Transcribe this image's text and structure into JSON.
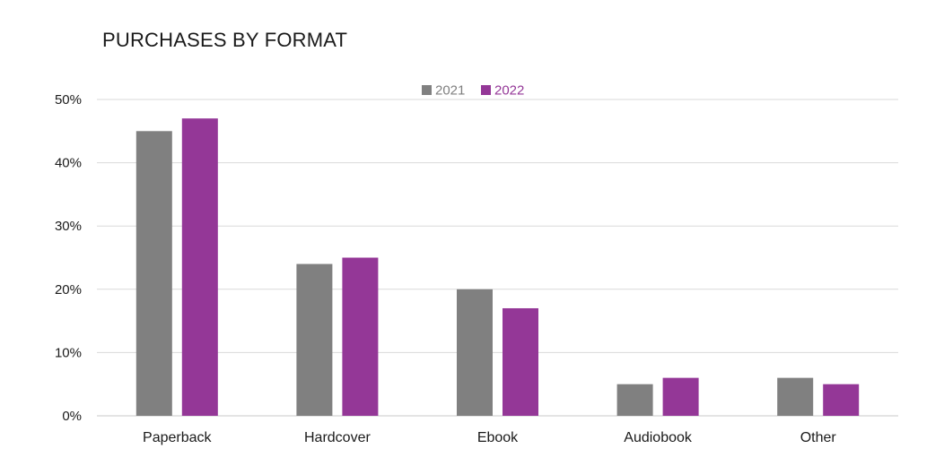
{
  "chart_data": {
    "type": "bar",
    "title": "PURCHASES BY FORMAT",
    "categories": [
      "Paperback",
      "Hardcover",
      "Ebook",
      "Audiobook",
      "Other"
    ],
    "series": [
      {
        "name": "2021",
        "values": [
          45,
          24,
          20,
          5,
          6
        ],
        "color": "#808080"
      },
      {
        "name": "2022",
        "values": [
          47,
          25,
          17,
          6,
          5
        ],
        "color": "#943797"
      }
    ],
    "y_ticks": [
      "0%",
      "10%",
      "20%",
      "30%",
      "40%",
      "50%"
    ],
    "ylim": [
      0,
      50
    ],
    "y_unit": "%",
    "grid": true,
    "legend_placement": "top-center",
    "xlabel": "",
    "ylabel": ""
  }
}
